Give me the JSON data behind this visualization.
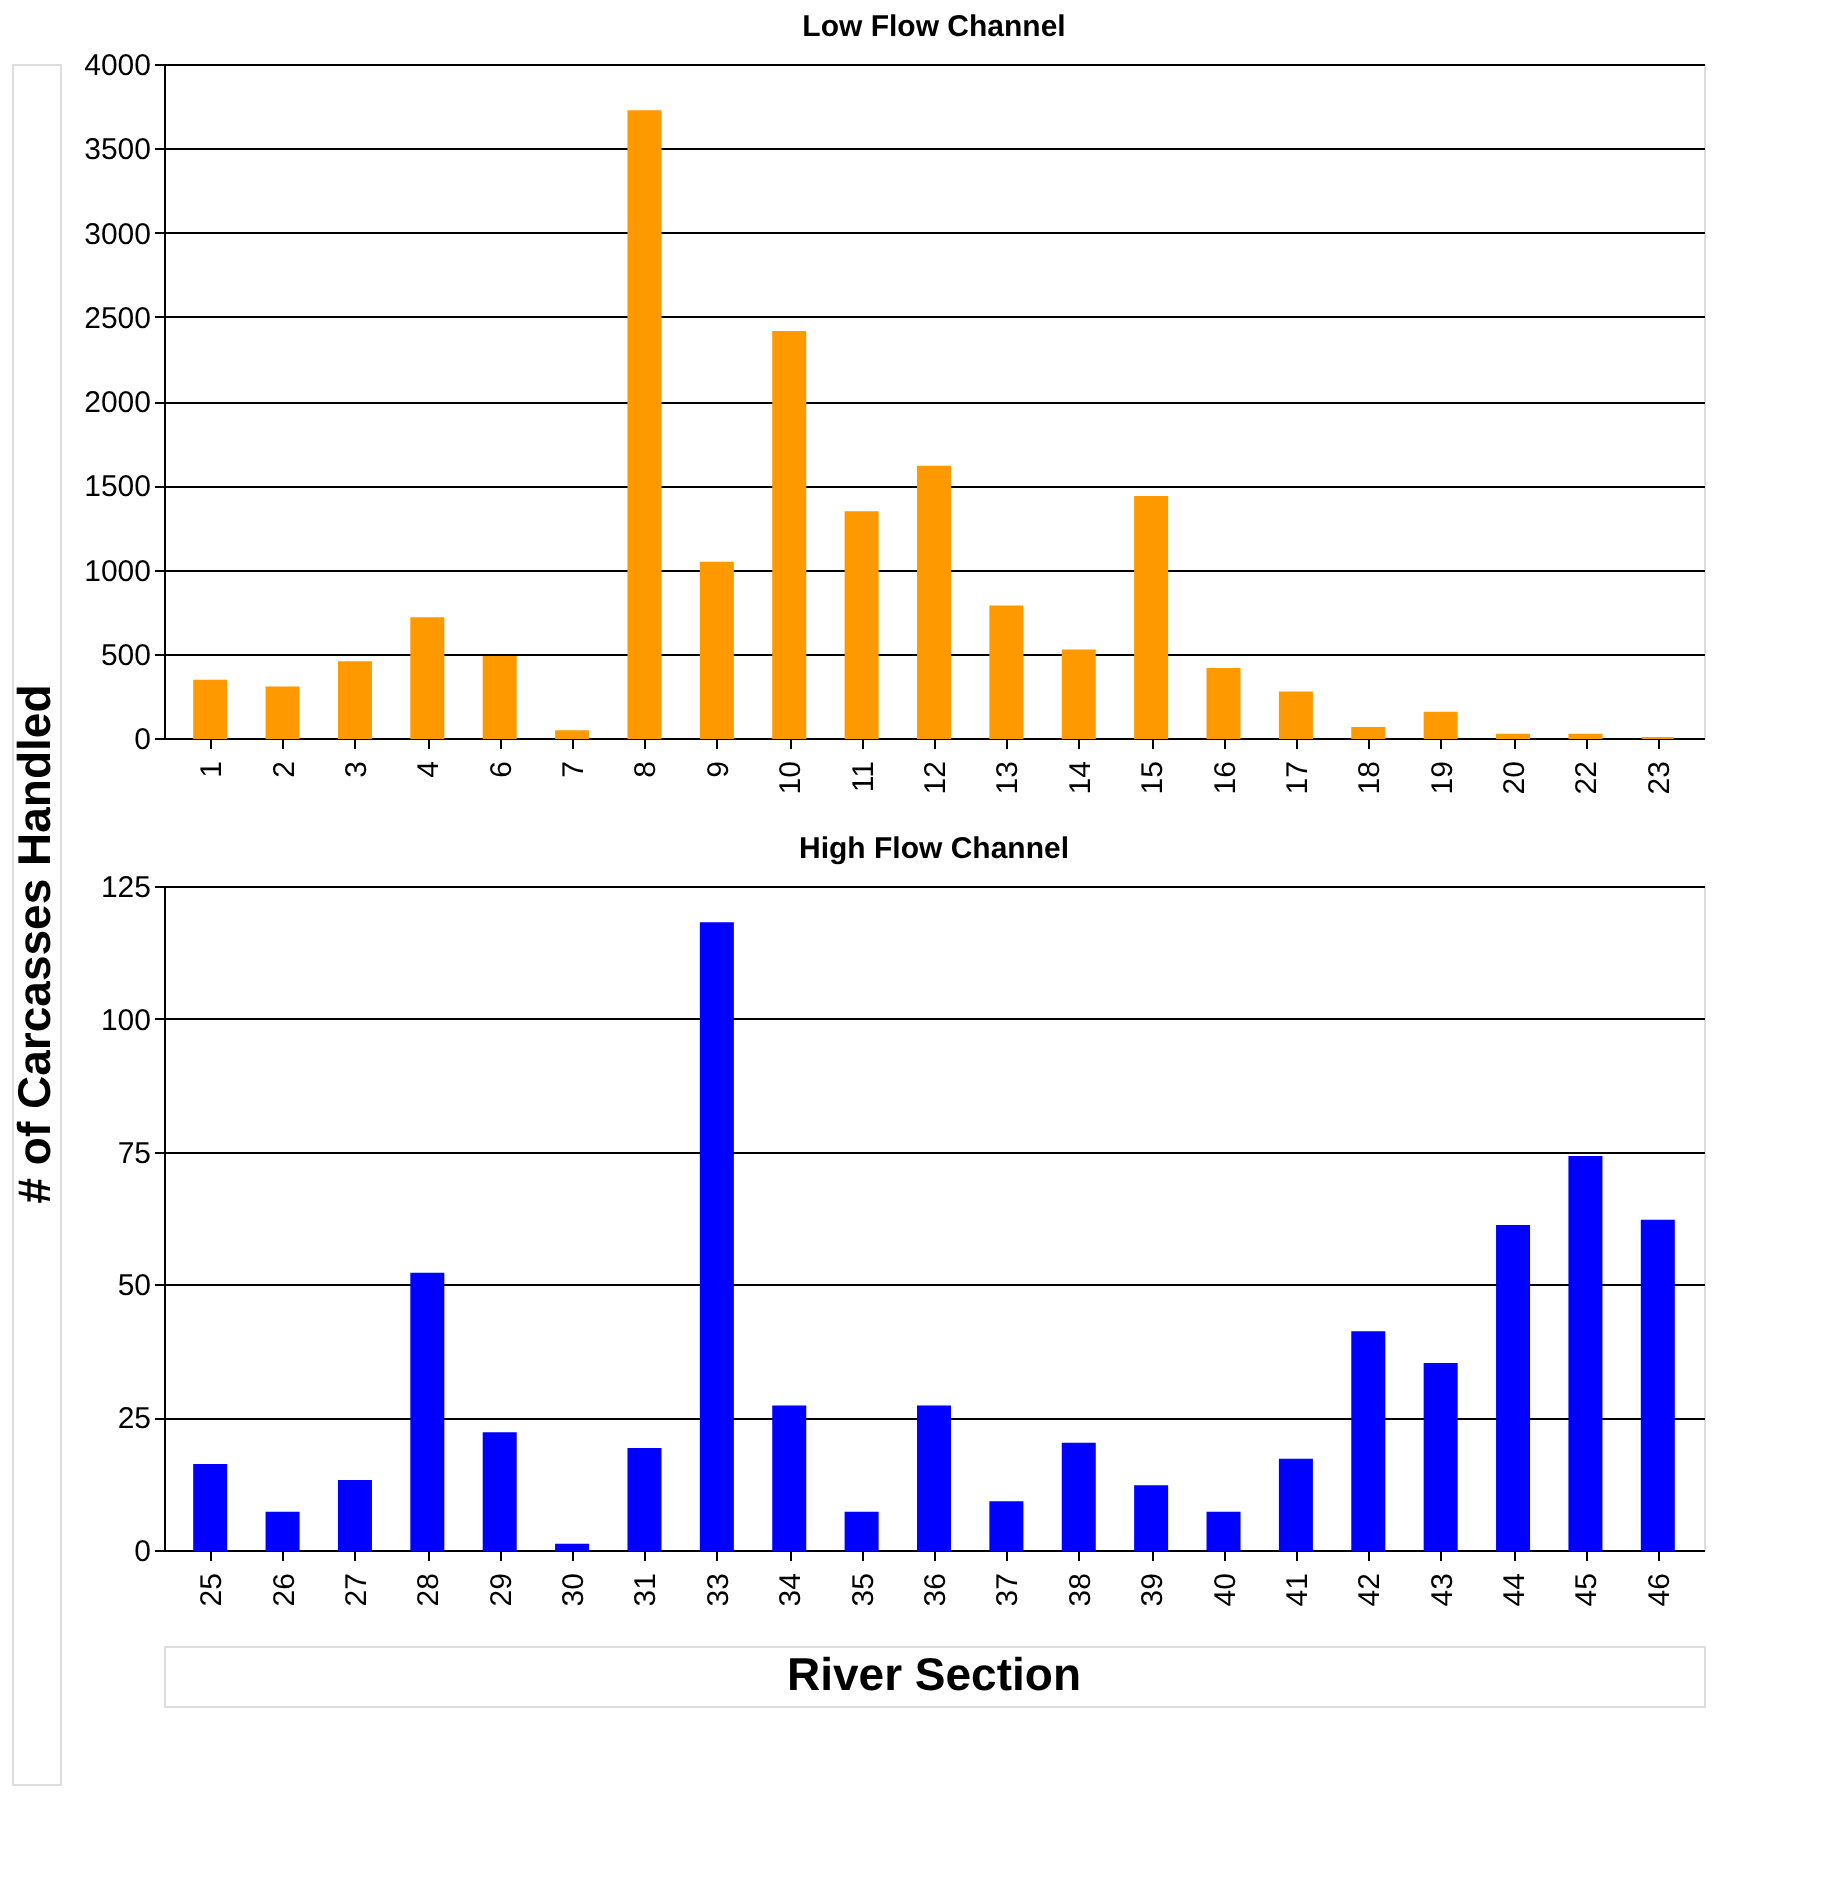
{
  "chart_data": [
    {
      "type": "bar",
      "title": "Low Flow Channel",
      "ylabel": "# of Carcasses Handled",
      "categories": [
        "1",
        "2",
        "3",
        "4",
        "6",
        "7",
        "8",
        "9",
        "10",
        "11",
        "12",
        "13",
        "14",
        "15",
        "16",
        "17",
        "18",
        "19",
        "20",
        "22",
        "23"
      ],
      "series": [
        {
          "color": "#ff9900",
          "values": [
            340,
            300,
            450,
            710,
            480,
            40,
            3720,
            1040,
            2410,
            1340,
            1610,
            780,
            520,
            1430,
            410,
            270,
            60,
            150,
            20,
            20,
            0
          ]
        }
      ],
      "ylim": [
        0,
        4000
      ],
      "yticks": [
        0,
        500,
        1000,
        1500,
        2000,
        2500,
        3000,
        3500,
        4000
      ],
      "grid": "y"
    },
    {
      "type": "bar",
      "title": "High Flow Channel",
      "xlabel": "River Section",
      "categories": [
        "25",
        "26",
        "27",
        "28",
        "29",
        "30",
        "31",
        "33",
        "34",
        "35",
        "36",
        "37",
        "38",
        "39",
        "40",
        "41",
        "42",
        "43",
        "44",
        "45",
        "46"
      ],
      "series": [
        {
          "color": "#0000ff",
          "values": [
            16,
            7,
            13,
            52,
            22,
            1,
            19,
            118,
            27,
            7,
            27,
            9,
            20,
            12,
            7,
            17,
            41,
            35,
            61,
            74,
            62
          ]
        }
      ],
      "ylim": [
        0,
        125
      ],
      "yticks": [
        0,
        25,
        50,
        75,
        100,
        125
      ],
      "grid": "y"
    }
  ]
}
